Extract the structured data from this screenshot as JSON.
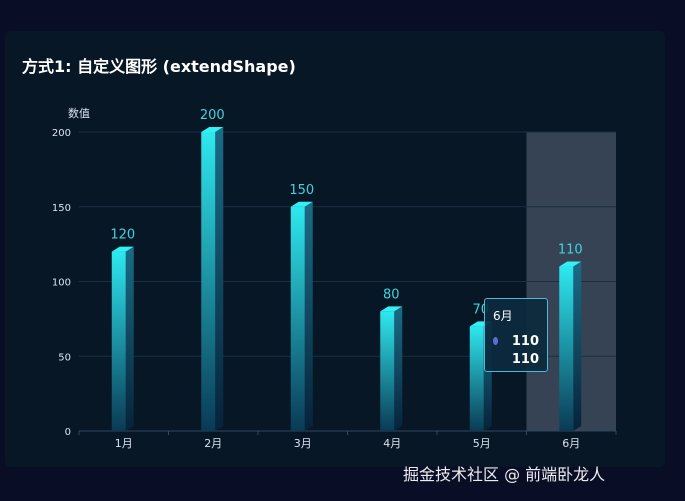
{
  "title": "方式1: 自定义图形 (extendShape)",
  "watermark": "掘金技术社区 @ 前端卧龙人",
  "colors": {
    "background": "#0a0d26",
    "panel": "#081726",
    "bar_top": "#2ee8ef",
    "bar_bottom": "#0a3a55",
    "label": "#3fd3e0",
    "axis_text": "#d9e3ee",
    "highlight": "#3d4b5e"
  },
  "tooltip": {
    "title": "6月",
    "values": [
      "110",
      "110"
    ]
  },
  "chart_data": {
    "type": "bar",
    "categories": [
      "1月",
      "2月",
      "3月",
      "4月",
      "5月",
      "6月"
    ],
    "values": [
      120,
      200,
      150,
      80,
      70,
      110
    ],
    "ylabel": "数值",
    "ylim": [
      0,
      200
    ],
    "yticks": [
      0,
      50,
      100,
      150,
      200
    ],
    "highlighted_category": "6月",
    "grid": true
  }
}
